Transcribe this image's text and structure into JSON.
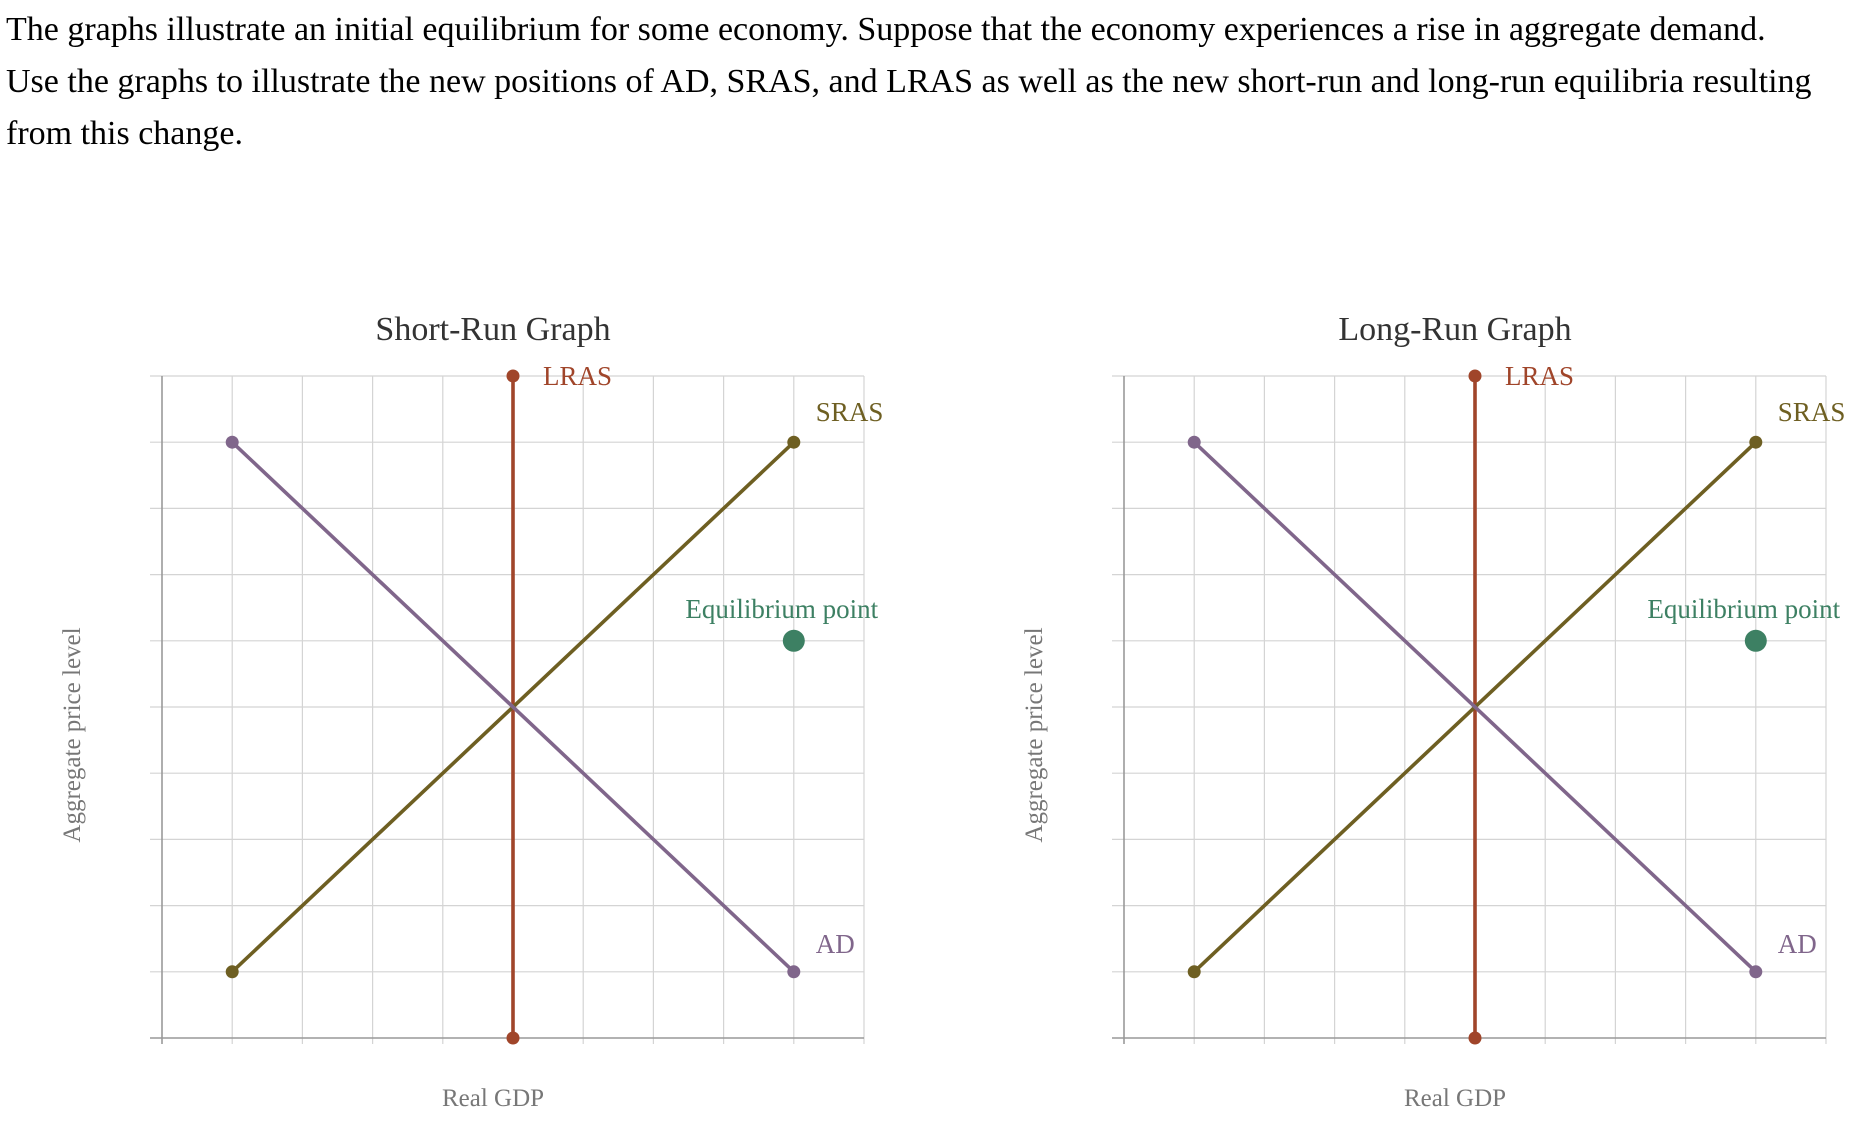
{
  "question": {
    "text": "The graphs illustrate an initial equilibrium for some economy. Suppose that the economy experiences a rise in aggregate demand. Use the graphs to illustrate the new positions of AD, SRAS, and LRAS as well as the new short-run and long-run equilibria resulting from this change."
  },
  "colors": {
    "lras": "#a0452a",
    "sras": "#6e5f22",
    "ad": "#80668b",
    "equilibrium": "#3d8063",
    "grid": "#d4d4d4",
    "axis": "#999999",
    "axis_label": "#777777",
    "title": "#333333"
  },
  "chart_data": [
    {
      "type": "line",
      "title": "Short-Run Graph",
      "xlabel": "Real GDP",
      "ylabel": "Aggregate price level",
      "xlim": [
        0,
        10
      ],
      "ylim": [
        0,
        10
      ],
      "grid": true,
      "series": [
        {
          "name": "LRAS",
          "key": "lras",
          "points": [
            [
              5,
              10
            ],
            [
              5,
              0
            ]
          ]
        },
        {
          "name": "SRAS",
          "key": "sras",
          "points": [
            [
              1,
              1
            ],
            [
              9,
              9
            ]
          ]
        },
        {
          "name": "AD",
          "key": "ad",
          "points": [
            [
              1,
              9
            ],
            [
              9,
              1
            ]
          ]
        }
      ],
      "equilibrium": {
        "label": "Equilibrium point",
        "x": 9,
        "y": 6
      }
    },
    {
      "type": "line",
      "title": "Long-Run Graph",
      "xlabel": "Real GDP",
      "ylabel": "Aggregate price level",
      "xlim": [
        0,
        10
      ],
      "ylim": [
        0,
        10
      ],
      "grid": true,
      "series": [
        {
          "name": "LRAS",
          "key": "lras",
          "points": [
            [
              5,
              10
            ],
            [
              5,
              0
            ]
          ]
        },
        {
          "name": "SRAS",
          "key": "sras",
          "points": [
            [
              1,
              1
            ],
            [
              9,
              9
            ]
          ]
        },
        {
          "name": "AD",
          "key": "ad",
          "points": [
            [
              1,
              9
            ],
            [
              9,
              1
            ]
          ]
        }
      ],
      "equilibrium": {
        "label": "Equilibrium point",
        "x": 9,
        "y": 6
      }
    }
  ]
}
